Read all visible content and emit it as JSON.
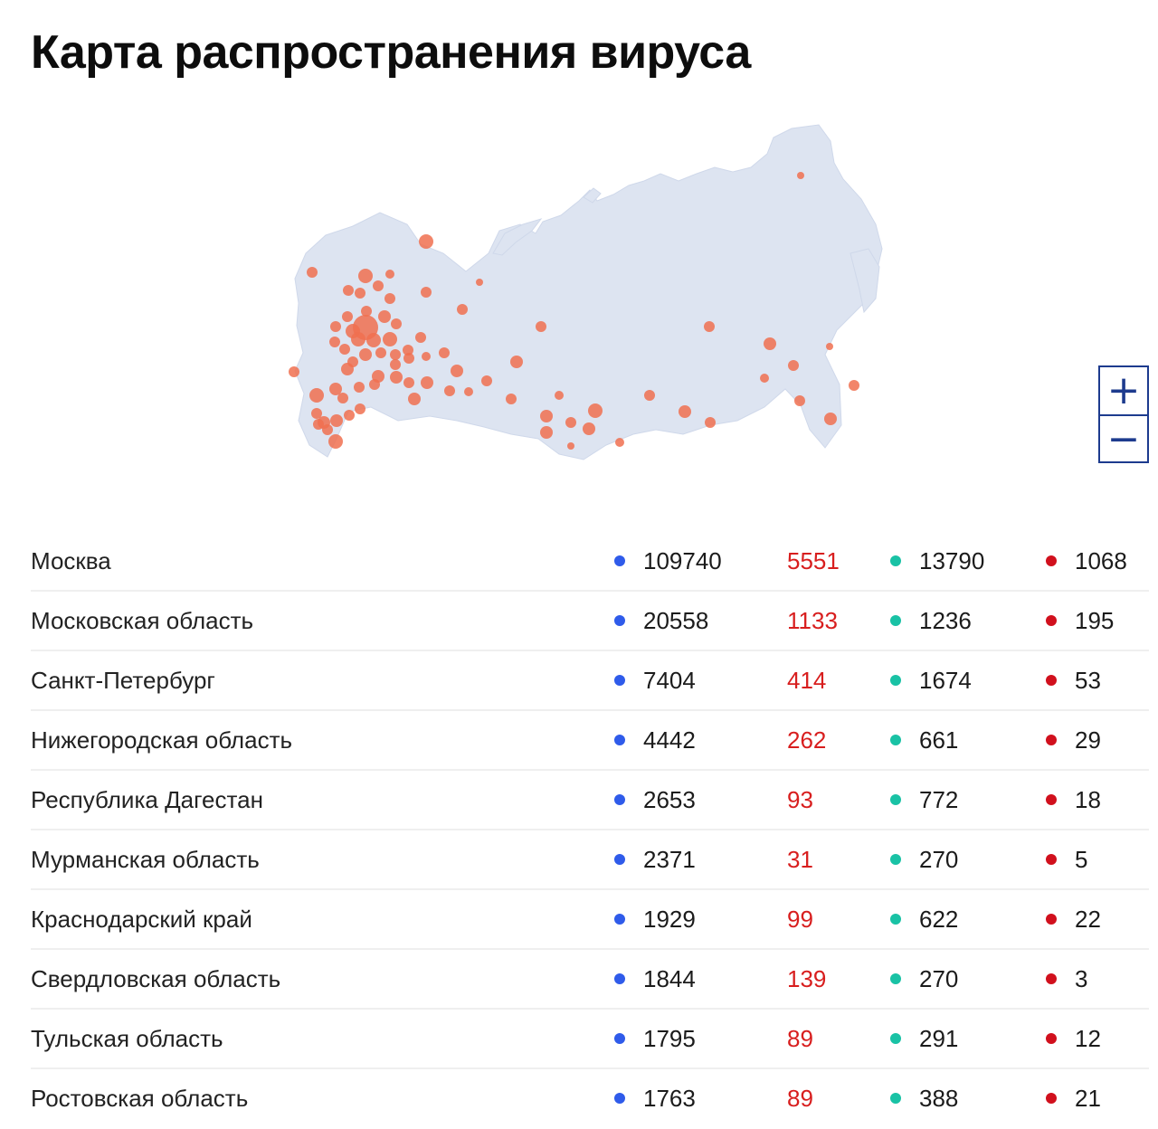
{
  "title": "Карта распространения вируса",
  "map": {
    "land_color": "#dde4f1",
    "marker_color": "#f07050",
    "zoom_in": "+",
    "zoom_out": "−"
  },
  "colors": {
    "total_dot": "#2f5bea",
    "new_cases": "#d81e1e",
    "recovered_dot": "#19c2a5",
    "deaths_dot": "#d1101d"
  },
  "rows": [
    {
      "region": "Москва",
      "total": "109740",
      "new": "5551",
      "recovered": "13790",
      "deaths": "1068"
    },
    {
      "region": "Московская область",
      "total": "20558",
      "new": "1133",
      "recovered": "1236",
      "deaths": "195"
    },
    {
      "region": "Санкт-Петербург",
      "total": "7404",
      "new": "414",
      "recovered": "1674",
      "deaths": "53"
    },
    {
      "region": "Нижегородская область",
      "total": "4442",
      "new": "262",
      "recovered": "661",
      "deaths": "29"
    },
    {
      "region": "Республика Дагестан",
      "total": "2653",
      "new": "93",
      "recovered": "772",
      "deaths": "18"
    },
    {
      "region": "Мурманская область",
      "total": "2371",
      "new": "31",
      "recovered": "270",
      "deaths": "5"
    },
    {
      "region": "Краснодарский край",
      "total": "1929",
      "new": "99",
      "recovered": "622",
      "deaths": "22"
    },
    {
      "region": "Свердловская область",
      "total": "1844",
      "new": "139",
      "recovered": "270",
      "deaths": "3"
    },
    {
      "region": "Тульская область",
      "total": "1795",
      "new": "89",
      "recovered": "291",
      "deaths": "12"
    },
    {
      "region": "Ростовская область",
      "total": "1763",
      "new": "89",
      "recovered": "388",
      "deaths": "21"
    }
  ]
}
